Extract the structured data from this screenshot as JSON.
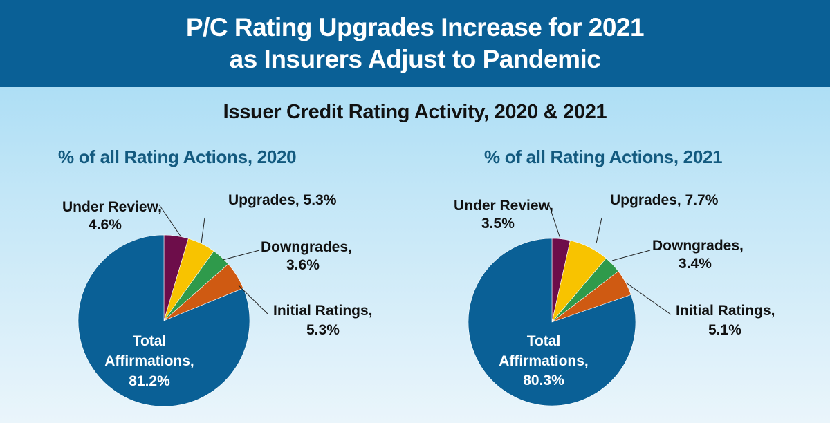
{
  "header": {
    "title_line1": "P/C Rating Upgrades Increase for 2021",
    "title_line2": "as Insurers Adjust to Pandemic"
  },
  "subtitle": "Issuer Credit Rating Activity, 2020 & 2021",
  "colors": {
    "under_review": "#6d0d4a",
    "upgrades": "#f8c300",
    "downgrades": "#2f9a4b",
    "initial_ratings": "#cf5a12",
    "total_affirmations": "#0a6096"
  },
  "chart_data": [
    {
      "type": "pie",
      "title": "% of all Rating Actions, 2020",
      "slices": [
        {
          "key": "under_review",
          "label": "Under Review,",
          "value_label": "4.6%",
          "value": 4.6
        },
        {
          "key": "upgrades",
          "label": "Upgrades, 5.3%",
          "value_label": "",
          "value": 5.3
        },
        {
          "key": "downgrades",
          "label": "Downgrades,",
          "value_label": "3.6%",
          "value": 3.6
        },
        {
          "key": "initial_ratings",
          "label": "Initial Ratings,",
          "value_label": "5.3%",
          "value": 5.3
        },
        {
          "key": "total_affirmations",
          "label": "Total",
          "label2": "Affirmations,",
          "value_label": "81.2%",
          "value": 81.2
        }
      ]
    },
    {
      "type": "pie",
      "title": "% of all Rating Actions, 2021",
      "slices": [
        {
          "key": "under_review",
          "label": "Under Review,",
          "value_label": "3.5%",
          "value": 3.5
        },
        {
          "key": "upgrades",
          "label": "Upgrades, 7.7%",
          "value_label": "",
          "value": 7.7
        },
        {
          "key": "downgrades",
          "label": "Downgrades,",
          "value_label": "3.4%",
          "value": 3.4
        },
        {
          "key": "initial_ratings",
          "label": "Initial Ratings,",
          "value_label": "5.1%",
          "value": 5.1
        },
        {
          "key": "total_affirmations",
          "label": "Total",
          "label2": "Affirmations,",
          "value_label": "80.3%",
          "value": 80.3
        }
      ]
    }
  ]
}
